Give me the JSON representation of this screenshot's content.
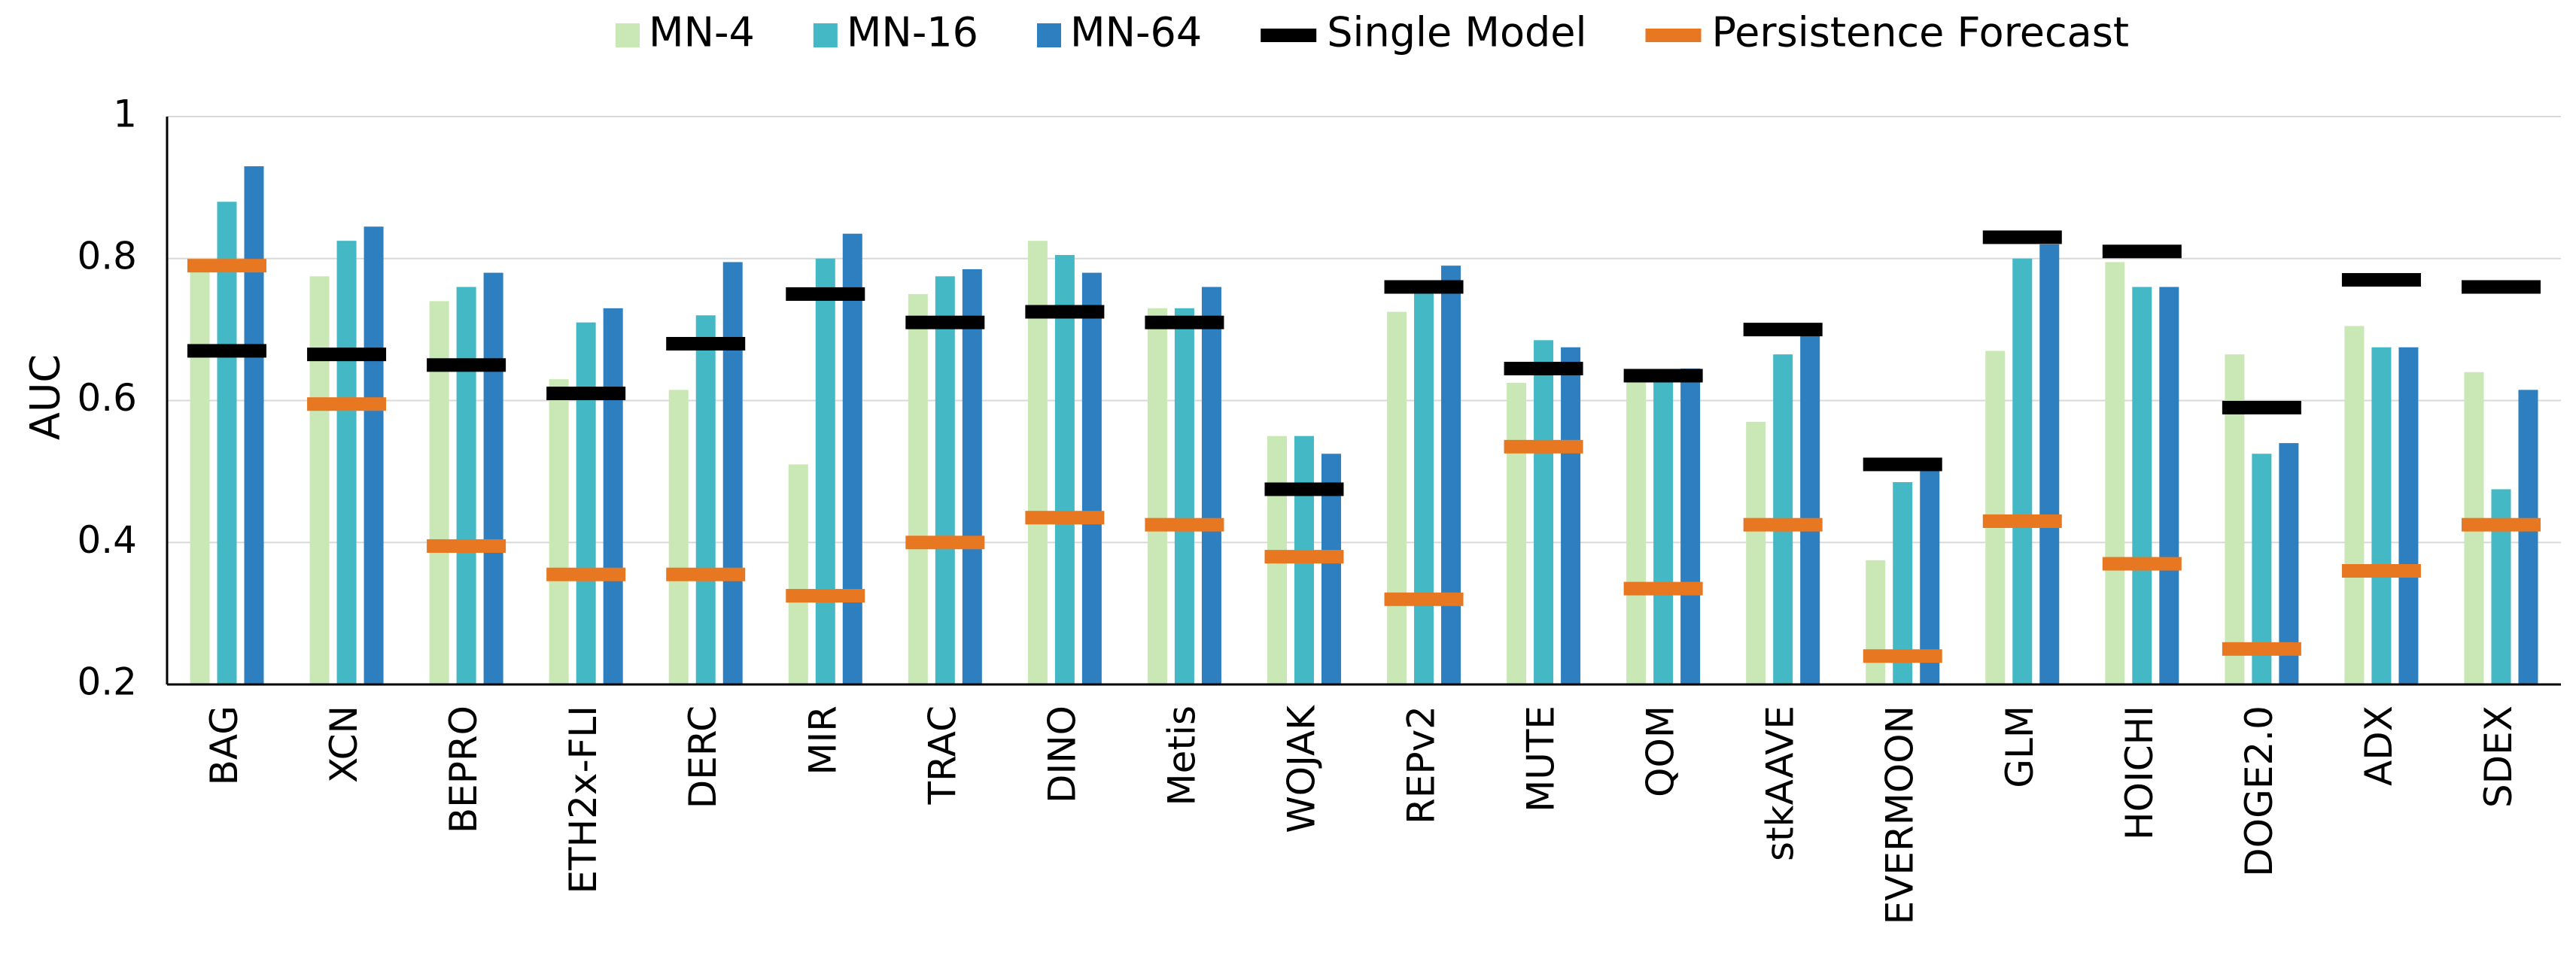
{
  "chart_data": {
    "type": "bar",
    "ylabel": "AUC",
    "ylim": [
      0.2,
      1.0
    ],
    "yticks": [
      "0.2",
      "0.4",
      "0.6",
      "0.8",
      "1"
    ],
    "grid": true,
    "legend_position": "top",
    "categories": [
      "BAG",
      "XCN",
      "BEPRO",
      "ETH2x-FLI",
      "DERC",
      "MIR",
      "TRAC",
      "DINO",
      "Metis",
      "WOJAK",
      "REPv2",
      "MUTE",
      "QOM",
      "stkAAVE",
      "EVERMOON",
      "GLM",
      "HOICHI",
      "DOGE2.0",
      "ADX",
      "SDEX"
    ],
    "series": [
      {
        "name": "MN-4",
        "color": "#c9e8b5",
        "values": [
          0.8,
          0.775,
          0.74,
          0.63,
          0.615,
          0.51,
          0.75,
          0.825,
          0.73,
          0.55,
          0.725,
          0.625,
          0.63,
          0.57,
          0.375,
          0.67,
          0.795,
          0.665,
          0.705,
          0.64
        ]
      },
      {
        "name": "MN-16",
        "color": "#45b8c6",
        "values": [
          0.88,
          0.825,
          0.76,
          0.71,
          0.72,
          0.8,
          0.775,
          0.805,
          0.73,
          0.55,
          0.76,
          0.685,
          0.64,
          0.665,
          0.485,
          0.8,
          0.76,
          0.525,
          0.675,
          0.475
        ]
      },
      {
        "name": "MN-64",
        "color": "#2e7fbf",
        "values": [
          0.93,
          0.845,
          0.78,
          0.73,
          0.795,
          0.835,
          0.785,
          0.78,
          0.76,
          0.525,
          0.79,
          0.675,
          0.645,
          0.7,
          0.51,
          0.82,
          0.76,
          0.54,
          0.675,
          0.615
        ]
      }
    ],
    "markers": [
      {
        "name": "Single Model",
        "color": "#000000",
        "values": [
          0.67,
          0.665,
          0.65,
          0.61,
          0.68,
          0.75,
          0.71,
          0.725,
          0.71,
          0.475,
          0.76,
          0.645,
          0.635,
          0.7,
          0.51,
          0.83,
          0.81,
          0.59,
          0.77,
          0.76
        ]
      },
      {
        "name": "Persistence Forecast",
        "color": "#e87722",
        "values": [
          0.79,
          0.595,
          0.395,
          0.355,
          0.355,
          0.325,
          0.4,
          0.435,
          0.425,
          0.38,
          0.32,
          0.535,
          0.335,
          0.425,
          0.24,
          0.43,
          0.37,
          0.25,
          0.36,
          0.425
        ]
      }
    ]
  }
}
